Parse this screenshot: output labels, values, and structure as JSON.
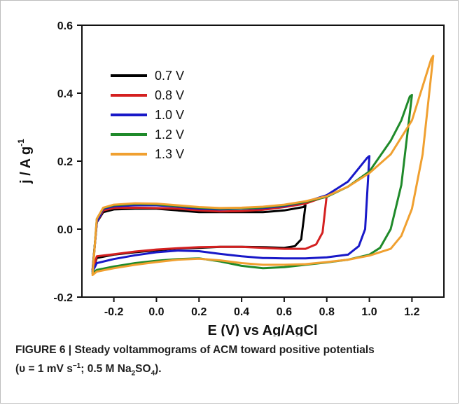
{
  "chart_data": {
    "type": "line",
    "title": "",
    "xlabel": "E (V) vs Ag/AgCl",
    "ylabel_main": "j / A g",
    "ylabel_sup": "-1",
    "xlim": [
      -0.35,
      1.35
    ],
    "ylim": [
      -0.2,
      0.6
    ],
    "xticks": [
      "-0.2",
      "0.0",
      "0.2",
      "0.4",
      "0.6",
      "0.8",
      "1.0",
      "1.2"
    ],
    "xtick_values": [
      -0.2,
      0.0,
      0.2,
      0.4,
      0.6,
      0.8,
      1.0,
      1.2
    ],
    "yticks": [
      "-0.2",
      "0.0",
      "0.2",
      "0.4",
      "0.6"
    ],
    "ytick_values": [
      -0.2,
      0.0,
      0.2,
      0.4,
      0.6
    ],
    "legend_position": "top-left",
    "grid": false,
    "series": [
      {
        "name": "0.7 V",
        "color": "#000000",
        "points": [
          [
            -0.3,
            -0.12
          ],
          [
            -0.28,
            -0.085
          ],
          [
            -0.2,
            -0.075
          ],
          [
            -0.1,
            -0.068
          ],
          [
            0.0,
            -0.062
          ],
          [
            0.1,
            -0.057
          ],
          [
            0.2,
            -0.055
          ],
          [
            0.3,
            -0.052
          ],
          [
            0.4,
            -0.052
          ],
          [
            0.5,
            -0.053
          ],
          [
            0.6,
            -0.055
          ],
          [
            0.65,
            -0.05
          ],
          [
            0.68,
            -0.03
          ],
          [
            0.7,
            0.07
          ],
          [
            0.69,
            0.065
          ],
          [
            0.6,
            0.055
          ],
          [
            0.5,
            0.05
          ],
          [
            0.4,
            0.05
          ],
          [
            0.3,
            0.05
          ],
          [
            0.2,
            0.05
          ],
          [
            0.1,
            0.055
          ],
          [
            0.0,
            0.06
          ],
          [
            -0.1,
            0.06
          ],
          [
            -0.2,
            0.058
          ],
          [
            -0.25,
            0.05
          ],
          [
            -0.28,
            0.02
          ],
          [
            -0.3,
            -0.12
          ]
        ]
      },
      {
        "name": "0.8 V",
        "color": "#d42020",
        "points": [
          [
            -0.3,
            -0.12
          ],
          [
            -0.28,
            -0.08
          ],
          [
            -0.2,
            -0.074
          ],
          [
            -0.1,
            -0.066
          ],
          [
            0.0,
            -0.06
          ],
          [
            0.1,
            -0.056
          ],
          [
            0.2,
            -0.053
          ],
          [
            0.3,
            -0.052
          ],
          [
            0.4,
            -0.052
          ],
          [
            0.5,
            -0.055
          ],
          [
            0.6,
            -0.058
          ],
          [
            0.7,
            -0.058
          ],
          [
            0.75,
            -0.045
          ],
          [
            0.78,
            -0.01
          ],
          [
            0.8,
            0.1
          ],
          [
            0.79,
            0.095
          ],
          [
            0.7,
            0.075
          ],
          [
            0.6,
            0.065
          ],
          [
            0.5,
            0.057
          ],
          [
            0.4,
            0.053
          ],
          [
            0.3,
            0.052
          ],
          [
            0.2,
            0.055
          ],
          [
            0.1,
            0.06
          ],
          [
            0.0,
            0.062
          ],
          [
            -0.1,
            0.063
          ],
          [
            -0.2,
            0.062
          ],
          [
            -0.25,
            0.055
          ],
          [
            -0.28,
            0.02
          ],
          [
            -0.3,
            -0.12
          ]
        ]
      },
      {
        "name": "1.0 V",
        "color": "#1818c8",
        "points": [
          [
            -0.3,
            -0.125
          ],
          [
            -0.28,
            -0.1
          ],
          [
            -0.2,
            -0.088
          ],
          [
            -0.1,
            -0.077
          ],
          [
            0.0,
            -0.068
          ],
          [
            0.1,
            -0.063
          ],
          [
            0.2,
            -0.065
          ],
          [
            0.3,
            -0.073
          ],
          [
            0.4,
            -0.08
          ],
          [
            0.5,
            -0.085
          ],
          [
            0.6,
            -0.086
          ],
          [
            0.7,
            -0.086
          ],
          [
            0.8,
            -0.083
          ],
          [
            0.9,
            -0.075
          ],
          [
            0.95,
            -0.05
          ],
          [
            0.98,
            0.0
          ],
          [
            1.0,
            0.215
          ],
          [
            0.99,
            0.21
          ],
          [
            0.9,
            0.14
          ],
          [
            0.8,
            0.1
          ],
          [
            0.7,
            0.08
          ],
          [
            0.6,
            0.068
          ],
          [
            0.5,
            0.062
          ],
          [
            0.4,
            0.06
          ],
          [
            0.3,
            0.058
          ],
          [
            0.2,
            0.06
          ],
          [
            0.1,
            0.066
          ],
          [
            0.0,
            0.07
          ],
          [
            -0.1,
            0.07
          ],
          [
            -0.2,
            0.067
          ],
          [
            -0.25,
            0.06
          ],
          [
            -0.28,
            0.02
          ],
          [
            -0.3,
            -0.125
          ]
        ]
      },
      {
        "name": "1.2 V",
        "color": "#1f8a2a",
        "points": [
          [
            -0.3,
            -0.13
          ],
          [
            -0.28,
            -0.12
          ],
          [
            -0.2,
            -0.11
          ],
          [
            -0.1,
            -0.1
          ],
          [
            0.0,
            -0.093
          ],
          [
            0.1,
            -0.088
          ],
          [
            0.2,
            -0.086
          ],
          [
            0.3,
            -0.095
          ],
          [
            0.4,
            -0.108
          ],
          [
            0.5,
            -0.115
          ],
          [
            0.6,
            -0.112
          ],
          [
            0.7,
            -0.105
          ],
          [
            0.8,
            -0.098
          ],
          [
            0.9,
            -0.09
          ],
          [
            1.0,
            -0.075
          ],
          [
            1.05,
            -0.055
          ],
          [
            1.1,
            0.0
          ],
          [
            1.15,
            0.13
          ],
          [
            1.2,
            0.395
          ],
          [
            1.19,
            0.39
          ],
          [
            1.15,
            0.32
          ],
          [
            1.1,
            0.26
          ],
          [
            1.0,
            0.17
          ],
          [
            0.9,
            0.125
          ],
          [
            0.8,
            0.095
          ],
          [
            0.7,
            0.08
          ],
          [
            0.6,
            0.07
          ],
          [
            0.5,
            0.064
          ],
          [
            0.4,
            0.061
          ],
          [
            0.3,
            0.06
          ],
          [
            0.2,
            0.063
          ],
          [
            0.1,
            0.068
          ],
          [
            0.0,
            0.073
          ],
          [
            -0.1,
            0.074
          ],
          [
            -0.2,
            0.07
          ],
          [
            -0.25,
            0.062
          ],
          [
            -0.28,
            0.03
          ],
          [
            -0.3,
            -0.13
          ]
        ]
      },
      {
        "name": "1.3 V",
        "color": "#f0a030",
        "points": [
          [
            -0.3,
            -0.135
          ],
          [
            -0.28,
            -0.125
          ],
          [
            -0.2,
            -0.115
          ],
          [
            -0.1,
            -0.105
          ],
          [
            0.0,
            -0.097
          ],
          [
            0.1,
            -0.09
          ],
          [
            0.2,
            -0.087
          ],
          [
            0.3,
            -0.092
          ],
          [
            0.4,
            -0.1
          ],
          [
            0.5,
            -0.105
          ],
          [
            0.6,
            -0.105
          ],
          [
            0.7,
            -0.103
          ],
          [
            0.8,
            -0.097
          ],
          [
            0.9,
            -0.09
          ],
          [
            1.0,
            -0.078
          ],
          [
            1.1,
            -0.058
          ],
          [
            1.15,
            -0.02
          ],
          [
            1.2,
            0.06
          ],
          [
            1.25,
            0.22
          ],
          [
            1.3,
            0.51
          ],
          [
            1.29,
            0.5
          ],
          [
            1.2,
            0.32
          ],
          [
            1.1,
            0.22
          ],
          [
            1.0,
            0.165
          ],
          [
            0.9,
            0.125
          ],
          [
            0.8,
            0.097
          ],
          [
            0.7,
            0.082
          ],
          [
            0.6,
            0.072
          ],
          [
            0.5,
            0.066
          ],
          [
            0.4,
            0.063
          ],
          [
            0.3,
            0.062
          ],
          [
            0.2,
            0.065
          ],
          [
            0.1,
            0.07
          ],
          [
            0.0,
            0.075
          ],
          [
            -0.1,
            0.076
          ],
          [
            -0.2,
            0.072
          ],
          [
            -0.25,
            0.063
          ],
          [
            -0.28,
            0.03
          ],
          [
            -0.3,
            -0.135
          ]
        ]
      }
    ]
  },
  "caption": {
    "fig_label": "FIGURE 6 | ",
    "text": "Steady voltammograms of ACM toward positive potentials",
    "line2_prefix": "(υ = 1 mV s",
    "line2_sup": "−1",
    "line2_mid": "; 0.5 M Na",
    "line2_sub1": "2",
    "line2_so": "SO",
    "line2_sub2": "4",
    "line2_end": ")."
  }
}
